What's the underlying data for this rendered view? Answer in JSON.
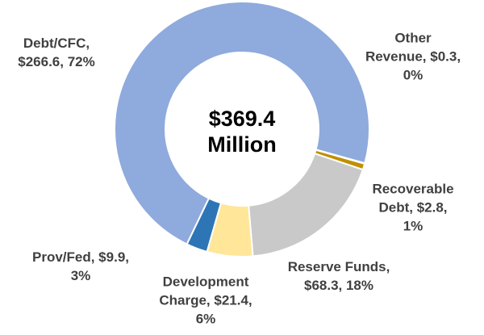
{
  "chart_data": {
    "type": "donut",
    "center_label": "$369.4\nMillion",
    "categories": [
      "Debt/CFC",
      "Other Revenue",
      "Recoverable Debt",
      "Reserve Funds",
      "Development Charge",
      "Prov/Fed"
    ],
    "values": [
      266.6,
      0.3,
      2.8,
      68.3,
      21.4,
      9.9
    ],
    "labels": [
      "Debt/CFC,\n$266.6, 72%",
      "Other\nRevenue, $0.3,\n0%",
      "Recoverable\nDebt, $2.8,\n1%",
      "Reserve Funds,\n$68.3, 18%",
      "Development\nCharge, $21.4,\n6%",
      "Prov/Fed, $9.9,\n3%"
    ],
    "colors": [
      "#8faadc",
      "#f2f2f2",
      "#bf9000",
      "#c9c9c9",
      "#ffe699",
      "#2e75b6"
    ]
  }
}
